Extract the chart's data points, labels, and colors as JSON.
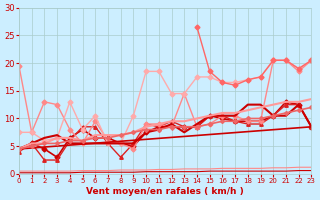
{
  "bg_color": "#cceeff",
  "grid_color": "#aacccc",
  "xlabel": "Vent moyen/en rafales ( km/h )",
  "xlabel_color": "#cc0000",
  "tick_color": "#cc0000",
  "xlim": [
    0,
    23
  ],
  "ylim": [
    0,
    30
  ],
  "yticks": [
    0,
    5,
    10,
    15,
    20,
    25,
    30
  ],
  "xticks": [
    0,
    1,
    2,
    3,
    4,
    5,
    6,
    7,
    8,
    9,
    10,
    11,
    12,
    13,
    14,
    15,
    16,
    17,
    18,
    19,
    20,
    21,
    22,
    23
  ],
  "lines": [
    {
      "x": [
        0,
        1,
        2,
        3,
        4,
        5,
        6,
        7,
        8,
        9,
        10,
        11,
        12,
        13,
        14,
        15,
        16,
        17,
        18,
        19,
        20,
        21,
        22,
        23
      ],
      "y": [
        4.5,
        5.5,
        4.5,
        3.0,
        6.5,
        8.0,
        6.5,
        6.5,
        5.5,
        5.0,
        7.5,
        8.5,
        8.5,
        8.5,
        8.5,
        10.5,
        10.0,
        9.5,
        9.5,
        9.5,
        10.5,
        13.0,
        12.5,
        8.5
      ],
      "color": "#cc0000",
      "lw": 1.2,
      "marker": "D",
      "ms": 2.5
    },
    {
      "x": [
        0,
        1,
        2,
        3,
        4,
        5,
        6,
        7,
        8,
        9,
        10,
        11,
        12,
        13,
        14,
        15,
        16,
        17,
        18,
        19,
        20,
        21,
        22,
        23
      ],
      "y": [
        4.0,
        5.5,
        2.5,
        2.5,
        6.0,
        8.5,
        8.5,
        5.5,
        3.0,
        5.5,
        9.0,
        8.5,
        9.5,
        8.5,
        8.5,
        10.5,
        10.5,
        9.5,
        9.0,
        9.0,
        10.5,
        12.5,
        12.5,
        8.5
      ],
      "color": "#dd2222",
      "lw": 1.0,
      "marker": "^",
      "ms": 2.5
    },
    {
      "x": [
        0,
        1,
        2,
        3,
        4,
        5,
        6,
        7,
        8,
        9,
        10,
        11,
        12,
        13,
        14,
        15,
        16,
        17,
        18,
        19,
        20,
        21,
        22,
        23
      ],
      "y": [
        19.5,
        7.5,
        13.0,
        12.5,
        8.0,
        5.5,
        9.5,
        6.0,
        5.5,
        4.5,
        9.0,
        9.0,
        8.5,
        14.5,
        8.5,
        9.0,
        10.5,
        10.5,
        9.5,
        9.5,
        20.5,
        20.5,
        18.5,
        20.5
      ],
      "color": "#ff8888",
      "lw": 1.0,
      "marker": "D",
      "ms": 2.5
    },
    {
      "x": [
        0,
        1,
        2,
        3,
        4,
        5,
        6,
        7,
        8,
        9,
        10,
        11,
        12,
        13,
        14,
        15,
        16,
        17,
        18,
        19,
        20,
        21,
        22,
        23
      ],
      "y": [
        7.5,
        7.5,
        6.0,
        6.5,
        13.0,
        8.0,
        10.5,
        5.5,
        5.5,
        10.5,
        18.5,
        18.5,
        14.5,
        14.5,
        17.5,
        17.5,
        16.5,
        16.5,
        17.0,
        17.5,
        20.5,
        20.5,
        19.0,
        20.5
      ],
      "color": "#ffaaaa",
      "lw": 1.0,
      "marker": "D",
      "ms": 2.5
    },
    {
      "x": [
        0,
        1,
        2,
        3,
        4,
        5,
        6,
        7,
        8,
        9,
        10,
        11,
        12,
        13,
        14,
        15,
        16,
        17,
        18,
        19,
        20,
        21,
        22,
        23
      ],
      "y": [
        4.5,
        5.5,
        6.5,
        7.0,
        5.5,
        5.5,
        5.5,
        5.5,
        5.5,
        5.5,
        7.5,
        8.0,
        9.0,
        7.5,
        9.0,
        10.5,
        10.5,
        10.5,
        12.5,
        12.5,
        10.5,
        10.5,
        12.5,
        8.5
      ],
      "color": "#cc0000",
      "lw": 1.5,
      "marker": null,
      "ms": 0
    },
    {
      "x": [
        0,
        1,
        2,
        3,
        4,
        5,
        6,
        7,
        8,
        9,
        10,
        11,
        12,
        13,
        14,
        15,
        16,
        17,
        18,
        19,
        20,
        21,
        22,
        23
      ],
      "y": [
        4.5,
        5.5,
        5.5,
        6.5,
        6.5,
        6.0,
        7.0,
        7.0,
        7.0,
        7.5,
        8.5,
        9.0,
        9.5,
        9.5,
        10.0,
        10.5,
        11.0,
        11.0,
        11.5,
        12.0,
        12.5,
        13.0,
        13.0,
        13.5
      ],
      "color": "#ff9999",
      "lw": 1.5,
      "marker": null,
      "ms": 0
    },
    {
      "x": [
        0,
        23
      ],
      "y": [
        4.5,
        8.5
      ],
      "color": "#cc0000",
      "lw": 1.2,
      "marker": null,
      "ms": 0
    },
    {
      "x": [
        0,
        1,
        2,
        3,
        4,
        5,
        6,
        7,
        8,
        9,
        10,
        11,
        12,
        13,
        14,
        15,
        16,
        17,
        18,
        19,
        20,
        21,
        22,
        23
      ],
      "y": [
        4.5,
        5.0,
        5.5,
        5.5,
        6.0,
        6.0,
        6.5,
        6.5,
        7.0,
        7.5,
        8.0,
        8.0,
        8.5,
        8.5,
        8.5,
        9.0,
        9.5,
        9.5,
        10.0,
        10.0,
        10.5,
        11.0,
        11.5,
        12.0
      ],
      "color": "#ee6666",
      "lw": 1.2,
      "marker": "D",
      "ms": 2.0
    },
    {
      "x": [
        0,
        1,
        2,
        3,
        4,
        5,
        6,
        7,
        8,
        9,
        10,
        11,
        12,
        13,
        14,
        15,
        16,
        17,
        18,
        19,
        20,
        21,
        22,
        23
      ],
      "y": [
        0.2,
        0.2,
        0.2,
        0.2,
        0.2,
        0.3,
        0.3,
        0.3,
        0.3,
        0.3,
        0.4,
        0.4,
        0.4,
        0.4,
        0.4,
        0.5,
        0.5,
        0.5,
        0.5,
        0.5,
        0.5,
        0.5,
        0.6,
        0.6
      ],
      "color": "#cc0000",
      "lw": 0.8,
      "marker": null,
      "ms": 0
    },
    {
      "x": [
        0,
        1,
        2,
        3,
        4,
        5,
        6,
        7,
        8,
        9,
        10,
        11,
        12,
        13,
        14,
        15,
        16,
        17,
        18,
        19,
        20,
        21,
        22,
        23
      ],
      "y": [
        0.5,
        0.5,
        0.5,
        0.5,
        0.5,
        0.6,
        0.6,
        0.6,
        0.7,
        0.7,
        0.7,
        0.8,
        0.8,
        0.9,
        0.9,
        0.9,
        1.0,
        1.0,
        1.0,
        1.0,
        1.1,
        1.1,
        1.2,
        1.2
      ],
      "color": "#ff8888",
      "lw": 0.8,
      "marker": null,
      "ms": 0
    },
    {
      "x": [
        14,
        15,
        16,
        17,
        18,
        19,
        20,
        21,
        22,
        23
      ],
      "y": [
        26.5,
        18.5,
        16.5,
        16.0,
        17.0,
        17.5,
        20.5,
        20.5,
        19.0,
        20.5
      ],
      "color": "#ff6666",
      "lw": 1.0,
      "marker": "D",
      "ms": 2.5
    }
  ]
}
